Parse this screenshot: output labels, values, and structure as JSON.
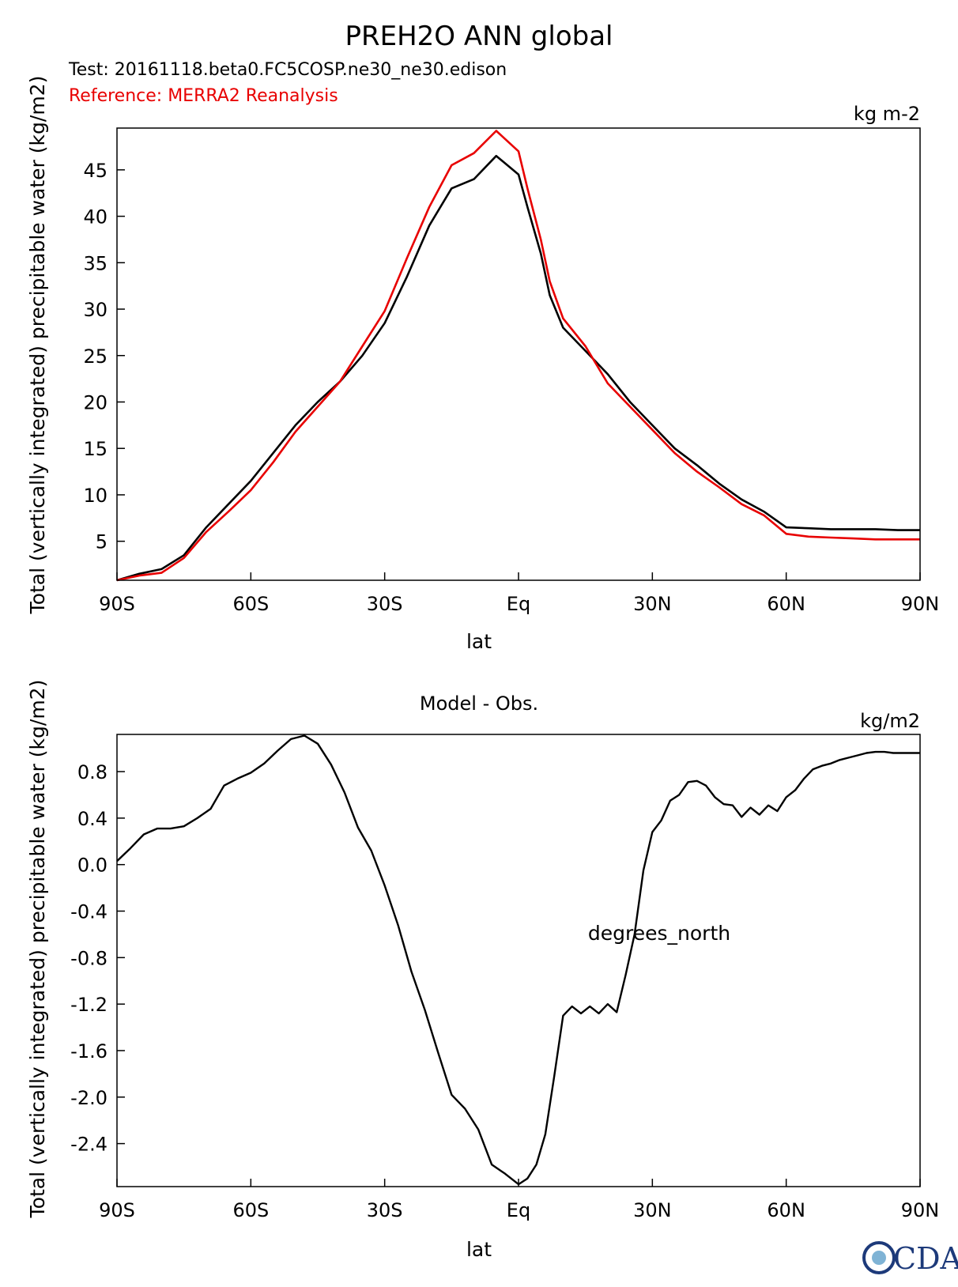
{
  "header": {
    "title": "PREH2O ANN global",
    "test_label": "Test: 20161118.beta0.FC5COSP.ne30_ne30.edison",
    "reference_label": "Reference: MERRA2 Reanalysis",
    "reference_color": "#e80000",
    "test_color": "#000000"
  },
  "ylabel_text": "Total (vertically integrated) precipitable water (kg/m2)",
  "logo": {
    "text": "CDAT",
    "color": "#1d3a7a"
  },
  "chart_data": [
    {
      "type": "line",
      "title": "",
      "units_label": "kg m-2",
      "xlabel": "lat",
      "ylabel": "Total (vertically integrated) precipitable water (kg/m2)",
      "xlim": [
        -90,
        90
      ],
      "ylim": [
        0.8,
        49.5
      ],
      "x_ticks": [
        -90,
        -60,
        -30,
        0,
        30,
        60,
        90
      ],
      "x_tick_labels": [
        "90S",
        "60S",
        "30S",
        "Eq",
        "30N",
        "60N",
        "90N"
      ],
      "y_ticks": [
        5,
        10,
        15,
        20,
        25,
        30,
        35,
        40,
        45
      ],
      "y_tick_labels": [
        "5",
        "10",
        "15",
        "20",
        "25",
        "30",
        "35",
        "40",
        "45"
      ],
      "series": [
        {
          "name": "Test",
          "color": "#000000",
          "x": [
            -90,
            -85,
            -80,
            -75,
            -70,
            -65,
            -60,
            -55,
            -50,
            -45,
            -40,
            -35,
            -30,
            -25,
            -20,
            -15,
            -10,
            -5,
            0,
            2,
            5,
            7,
            10,
            15,
            20,
            25,
            30,
            35,
            40,
            45,
            50,
            55,
            60,
            65,
            70,
            75,
            80,
            85,
            90
          ],
          "values": [
            0.8,
            1.5,
            2.0,
            3.5,
            6.5,
            9.0,
            11.5,
            14.5,
            17.5,
            20.0,
            22.2,
            25.0,
            28.5,
            33.5,
            39.0,
            43.0,
            44.0,
            46.5,
            44.5,
            41.0,
            36.0,
            31.5,
            28.0,
            25.5,
            23.0,
            20.0,
            17.5,
            15.0,
            13.2,
            11.2,
            9.5,
            8.2,
            6.5,
            6.4,
            6.3,
            6.3,
            6.3,
            6.2,
            6.2
          ],
          "_note": "x values are degrees latitude"
        },
        {
          "name": "Reference",
          "color": "#e80000",
          "x": [
            -90,
            -85,
            -80,
            -75,
            -70,
            -65,
            -60,
            -55,
            -50,
            -45,
            -40,
            -35,
            -30,
            -25,
            -20,
            -15,
            -10,
            -5,
            0,
            2,
            5,
            7,
            10,
            15,
            20,
            25,
            30,
            35,
            40,
            45,
            50,
            55,
            60,
            65,
            70,
            75,
            80,
            85,
            90
          ],
          "values": [
            0.8,
            1.3,
            1.6,
            3.2,
            6.0,
            8.2,
            10.5,
            13.5,
            16.8,
            19.5,
            22.2,
            26.0,
            29.8,
            35.5,
            41.0,
            45.5,
            46.8,
            49.2,
            47.0,
            43.0,
            37.5,
            33.0,
            29.0,
            26.0,
            22.0,
            19.5,
            17.0,
            14.5,
            12.5,
            10.8,
            9.0,
            7.8,
            5.8,
            5.5,
            5.4,
            5.3,
            5.2,
            5.2,
            5.2
          ],
          "_note": "x values are degrees latitude"
        }
      ]
    },
    {
      "type": "line",
      "title": "Model - Obs.",
      "units_label": "kg/m2",
      "annotation": "degrees_north",
      "xlabel": "lat",
      "ylabel": "Total (vertically integrated) precipitable water (kg/m2)",
      "xlim": [
        -90,
        90
      ],
      "ylim": [
        -2.77,
        1.12
      ],
      "x_ticks": [
        -90,
        -60,
        -30,
        0,
        30,
        60,
        90
      ],
      "x_tick_labels": [
        "90S",
        "60S",
        "30S",
        "Eq",
        "30N",
        "60N",
        "90N"
      ],
      "y_ticks": [
        -2.4,
        -2.0,
        -1.6,
        -1.2,
        -0.8,
        -0.4,
        0.0,
        0.4,
        0.8
      ],
      "y_tick_labels": [
        "-2.4",
        "-2.0",
        "-1.6",
        "-1.2",
        "-0.8",
        "-0.4",
        "0.0",
        "0.4",
        "0.8"
      ],
      "series": [
        {
          "name": "Model - Obs.",
          "color": "#000000",
          "x": [
            -90,
            -87,
            -84,
            -81,
            -78,
            -75,
            -72,
            -69,
            -66,
            -63,
            -60,
            -57,
            -54,
            -51,
            -48,
            -45,
            -42,
            -39,
            -36,
            -33,
            -30,
            -27,
            -24,
            -21,
            -18,
            -15,
            -12,
            -9,
            -6,
            -3,
            0,
            2,
            4,
            6,
            8,
            10,
            12,
            14,
            16,
            18,
            20,
            22,
            24,
            26,
            28,
            30,
            32,
            34,
            36,
            38,
            40,
            42,
            44,
            46,
            48,
            50,
            52,
            54,
            56,
            58,
            60,
            62,
            64,
            66,
            68,
            70,
            72,
            74,
            76,
            78,
            80,
            82,
            84,
            86,
            88,
            90
          ],
          "values": [
            0.03,
            0.14,
            0.26,
            0.31,
            0.31,
            0.33,
            0.4,
            0.48,
            0.68,
            0.74,
            0.79,
            0.87,
            0.98,
            1.08,
            1.11,
            1.04,
            0.86,
            0.62,
            0.32,
            0.12,
            -0.18,
            -0.52,
            -0.92,
            -1.25,
            -1.62,
            -1.98,
            -2.1,
            -2.28,
            -2.58,
            -2.66,
            -2.75,
            -2.7,
            -2.58,
            -2.32,
            -1.82,
            -1.3,
            -1.22,
            -1.28,
            -1.22,
            -1.28,
            -1.2,
            -1.27,
            -0.95,
            -0.6,
            -0.05,
            0.28,
            0.38,
            0.55,
            0.6,
            0.71,
            0.72,
            0.68,
            0.58,
            0.52,
            0.51,
            0.41,
            0.49,
            0.43,
            0.51,
            0.46,
            0.58,
            0.64,
            0.74,
            0.82,
            0.85,
            0.87,
            0.9,
            0.92,
            0.94,
            0.96,
            0.97,
            0.97,
            0.96,
            0.96,
            0.96,
            0.96
          ],
          "_note": "x values are degrees latitude"
        }
      ]
    }
  ]
}
